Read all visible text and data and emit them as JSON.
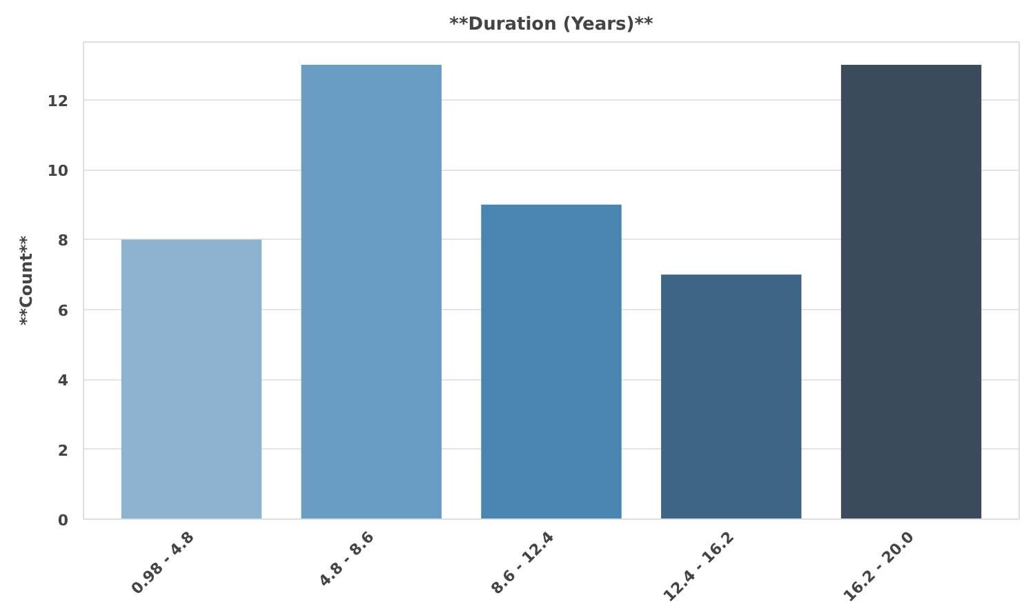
{
  "chart_data": {
    "type": "bar",
    "title": "**Duration (Years)**",
    "ylabel": "**Count**",
    "categories": [
      "0.98 - 4.8",
      "4.8 - 8.6",
      "8.6 - 12.4",
      "12.4 - 16.2",
      "16.2 - 20.0"
    ],
    "values": [
      8,
      13,
      9,
      7,
      13
    ],
    "colors": [
      "#8db3cf",
      "#6a9dc2",
      "#4a84b0",
      "#3e6586",
      "#3b4b5c"
    ],
    "ylim": [
      0,
      13.65
    ],
    "yticks": [
      0,
      2,
      4,
      6,
      8,
      10,
      12
    ],
    "grid": "y"
  }
}
